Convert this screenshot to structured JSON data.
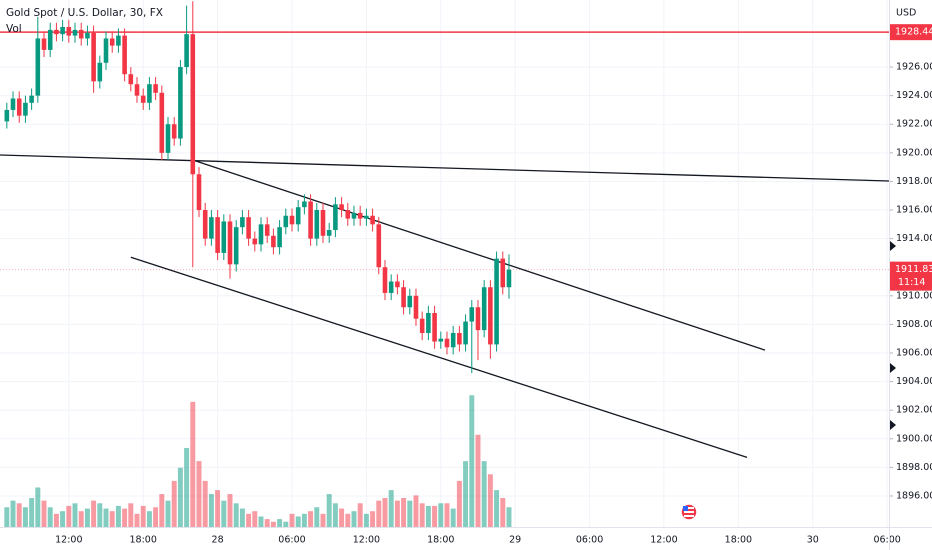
{
  "chart_data": {
    "type": "candlestick",
    "title": "Gold Spot / U.S. Dollar, 30, FX",
    "volume_label": "Vol",
    "currency": "USD",
    "up_color": "#089981",
    "down_color": "#f23645",
    "open": [
      1922.2,
      1923.0,
      1923.8,
      1922.6,
      1923.5,
      1924.0,
      1928.0,
      1927.2,
      1928.6,
      1928.3,
      1928.8,
      1928.2,
      1928.6,
      1928.0,
      1928.4,
      1925.0,
      1926.3,
      1928.0,
      1927.5,
      1928.2,
      1925.5,
      1924.8,
      1924.0,
      1923.5,
      1924.8,
      1924.2,
      1920.0,
      1922.0,
      1921.0,
      1926.0,
      1928.3,
      1918.5,
      1916.0,
      1914.0,
      1915.5,
      1913.0,
      1915.2,
      1912.2,
      1914.8,
      1915.5,
      1914.0,
      1913.6,
      1915.0,
      1914.2,
      1913.4,
      1914.8,
      1915.6,
      1915.0,
      1916.2,
      1916.6,
      1914.0,
      1916.0,
      1914.2,
      1914.6,
      1916.4,
      1916.0,
      1915.4,
      1915.8,
      1915.4,
      1915.6,
      1915.0,
      1912.0,
      1910.2,
      1911.0,
      1910.6,
      1909.2,
      1910.0,
      1908.4,
      1907.4,
      1908.8,
      1906.8,
      1907.0,
      1906.4,
      1907.4,
      1906.6,
      1908.2,
      1909.2,
      1907.6,
      1910.6,
      1906.6,
      1912.6,
      1910.6
    ],
    "high": [
      1923.5,
      1924.3,
      1924.3,
      1924.0,
      1924.5,
      1929.5,
      1928.5,
      1929.1,
      1929.1,
      1929.3,
      1929.3,
      1929.1,
      1929.1,
      1928.9,
      1928.9,
      1926.8,
      1928.5,
      1928.5,
      1928.7,
      1928.7,
      1926.0,
      1925.3,
      1924.5,
      1925.3,
      1925.3,
      1924.7,
      1922.5,
      1922.5,
      1926.5,
      1930.3,
      1930.6,
      1919.0,
      1916.5,
      1916.0,
      1916.0,
      1915.7,
      1915.7,
      1915.3,
      1916.0,
      1916.0,
      1914.5,
      1915.5,
      1915.5,
      1914.7,
      1915.3,
      1916.1,
      1916.1,
      1916.7,
      1917.1,
      1917.1,
      1916.5,
      1916.5,
      1915.1,
      1916.9,
      1916.9,
      1916.5,
      1916.3,
      1916.3,
      1916.1,
      1916.1,
      1915.5,
      1912.5,
      1911.5,
      1911.5,
      1911.1,
      1910.5,
      1910.5,
      1908.9,
      1909.3,
      1909.3,
      1907.5,
      1907.5,
      1907.9,
      1907.9,
      1908.7,
      1909.7,
      1909.7,
      1911.1,
      1911.1,
      1913.1,
      1913.1,
      1912.9
    ],
    "low": [
      1921.7,
      1922.5,
      1922.1,
      1922.1,
      1923.0,
      1923.5,
      1926.7,
      1926.7,
      1927.8,
      1927.8,
      1927.7,
      1927.7,
      1927.5,
      1927.5,
      1924.2,
      1924.5,
      1925.8,
      1927.0,
      1927.0,
      1925.0,
      1924.3,
      1923.5,
      1923.0,
      1923.0,
      1923.7,
      1919.5,
      1919.5,
      1920.5,
      1920.5,
      1925.5,
      1912.0,
      1915.5,
      1913.5,
      1913.5,
      1912.5,
      1912.5,
      1911.2,
      1911.7,
      1914.3,
      1913.5,
      1913.1,
      1913.1,
      1913.7,
      1912.9,
      1912.9,
      1914.3,
      1914.5,
      1914.5,
      1915.7,
      1913.5,
      1913.5,
      1913.7,
      1913.7,
      1914.1,
      1915.5,
      1914.9,
      1914.9,
      1914.9,
      1914.9,
      1914.5,
      1911.5,
      1909.7,
      1909.7,
      1910.1,
      1908.7,
      1908.7,
      1907.9,
      1906.9,
      1906.9,
      1906.3,
      1906.3,
      1905.9,
      1905.9,
      1906.1,
      1906.1,
      1904.6,
      1905.5,
      1907.1,
      1905.6,
      1906.1,
      1910.1,
      1909.8
    ],
    "close": [
      1923.0,
      1923.8,
      1922.6,
      1923.5,
      1924.0,
      1928.0,
      1927.2,
      1928.6,
      1928.3,
      1928.8,
      1928.2,
      1928.6,
      1928.0,
      1928.4,
      1925.0,
      1926.3,
      1928.0,
      1927.5,
      1928.2,
      1925.5,
      1924.8,
      1924.0,
      1923.5,
      1924.8,
      1924.2,
      1920.0,
      1922.0,
      1921.0,
      1926.0,
      1928.3,
      1918.5,
      1916.0,
      1914.0,
      1915.5,
      1913.0,
      1915.2,
      1912.2,
      1914.8,
      1915.5,
      1914.0,
      1913.6,
      1915.0,
      1914.2,
      1913.4,
      1914.8,
      1915.6,
      1915.0,
      1916.2,
      1916.6,
      1914.0,
      1916.0,
      1914.2,
      1914.6,
      1916.4,
      1916.0,
      1915.4,
      1915.8,
      1915.4,
      1915.6,
      1915.0,
      1912.0,
      1910.2,
      1911.0,
      1910.6,
      1909.2,
      1910.0,
      1908.4,
      1907.4,
      1908.8,
      1906.8,
      1907.0,
      1906.4,
      1907.4,
      1906.6,
      1908.2,
      1909.2,
      1907.6,
      1910.6,
      1906.6,
      1912.6,
      1910.6,
      1911.83
    ],
    "volume": [
      15,
      20,
      18,
      15,
      22,
      30,
      20,
      15,
      10,
      12,
      16,
      18,
      12,
      14,
      20,
      18,
      14,
      12,
      16,
      14,
      18,
      10,
      16,
      12,
      15,
      25,
      20,
      35,
      45,
      60,
      95,
      50,
      35,
      25,
      28,
      20,
      25,
      18,
      14,
      10,
      12,
      8,
      6,
      4,
      6,
      4,
      10,
      8,
      10,
      12,
      15,
      10,
      25,
      18,
      14,
      10,
      12,
      18,
      10,
      12,
      20,
      22,
      28,
      20,
      22,
      20,
      24,
      18,
      16,
      16,
      18,
      18,
      14,
      35,
      50,
      100,
      70,
      50,
      40,
      28,
      22,
      15
    ],
    "volume_lim": [
      0,
      400
    ],
    "xlim": [
      -1.1,
      142.3
    ],
    "xticks": [
      {
        "value": 10,
        "label": "12:00"
      },
      {
        "value": 22,
        "label": "18:00"
      },
      {
        "value": 34,
        "label": "28"
      },
      {
        "value": 46,
        "label": "06:00"
      },
      {
        "value": 58,
        "label": "12:00"
      },
      {
        "value": 70,
        "label": "18:00"
      },
      {
        "value": 82,
        "label": "29"
      },
      {
        "value": 94,
        "label": "06:00"
      },
      {
        "value": 106,
        "label": "12:00"
      },
      {
        "value": 118,
        "label": "18:00"
      },
      {
        "value": 130,
        "label": "30"
      },
      {
        "value": 142,
        "label": "06:00"
      }
    ],
    "ylim": [
      1893.83,
      1930.69
    ],
    "yticks": [
      {
        "value": 1896,
        "label": "1896.00"
      },
      {
        "value": 1898,
        "label": "1898.00"
      },
      {
        "value": 1900,
        "label": "1900.00"
      },
      {
        "value": 1902,
        "label": "1902.00"
      },
      {
        "value": 1904,
        "label": "1904.00"
      },
      {
        "value": 1906,
        "label": "1906.00"
      },
      {
        "value": 1908,
        "label": "1908.00"
      },
      {
        "value": 1910,
        "label": "1910.00"
      },
      {
        "value": 1914,
        "label": "1914.00"
      },
      {
        "value": 1916,
        "label": "1916.00"
      },
      {
        "value": 1918,
        "label": "1918.00"
      },
      {
        "value": 1920,
        "label": "1920.00"
      },
      {
        "value": 1922,
        "label": "1922.00"
      },
      {
        "value": 1924,
        "label": "1924.00"
      },
      {
        "value": 1926,
        "label": "1926.00"
      }
    ],
    "grid": true,
    "horizontal_line": {
      "value": 1928.44,
      "color": "#f23645"
    },
    "last_price": {
      "value": 1911.83,
      "countdown": "11:14",
      "color": "#f23645"
    },
    "trend_lines": [
      {
        "x": [
          -1.1,
          142.3
        ],
        "y": [
          1919.85,
          1918.03
        ],
        "color": "#131722"
      },
      {
        "x": [
          30,
          122.3
        ],
        "y": [
          1919.5,
          1906.2
        ],
        "color": "#131722"
      },
      {
        "x": [
          20,
          119.4
        ],
        "y": [
          1912.7,
          1898.7
        ],
        "color": "#131722"
      }
    ]
  }
}
